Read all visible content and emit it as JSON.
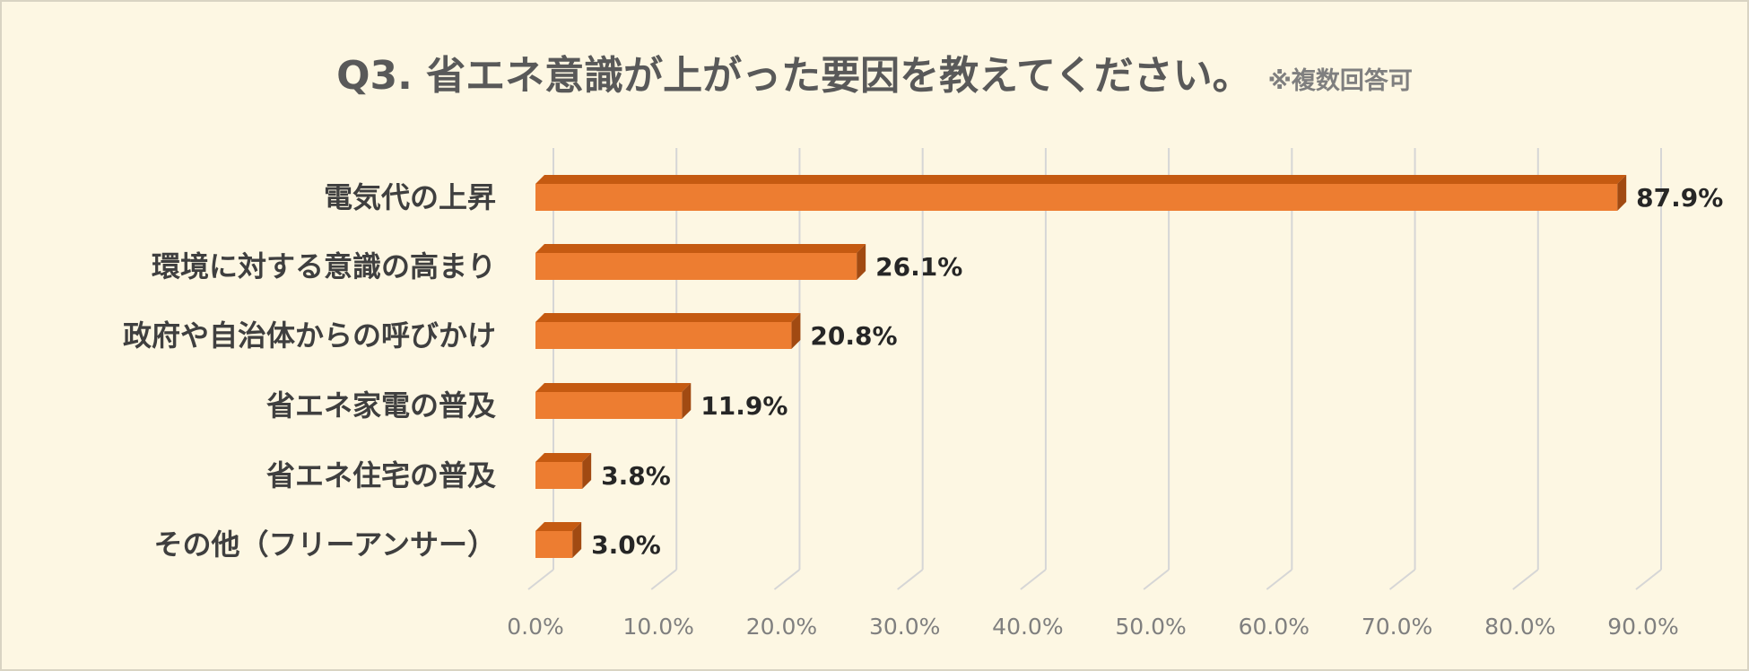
{
  "chart_data": {
    "type": "bar",
    "orientation": "horizontal",
    "title": "Q3. 省エネ意識が上がった要因を教えてください。",
    "subtitle": "※複数回答可",
    "categories": [
      "電気代の上昇",
      "環境に対する意識の高まり",
      "政府や自治体からの呼びかけ",
      "省エネ家電の普及",
      "省エネ住宅の普及",
      "その他（フリーアンサー）"
    ],
    "values": [
      87.9,
      26.1,
      20.8,
      11.9,
      3.8,
      3.0
    ],
    "value_labels": [
      "87.9%",
      "26.1%",
      "20.8%",
      "11.9%",
      "3.8%",
      "3.0%"
    ],
    "xlim": [
      0,
      90
    ],
    "x_ticks": [
      "0.0%",
      "10.0%",
      "20.0%",
      "30.0%",
      "40.0%",
      "50.0%",
      "60.0%",
      "70.0%",
      "80.0%",
      "90.0%"
    ],
    "grid": true,
    "bar_color": "#ed7d31",
    "bar_top_color": "#c55a11",
    "bar_side_color": "#a14a12",
    "grid_color": "#d6d6d6",
    "background_color": "#fdf7e3"
  }
}
